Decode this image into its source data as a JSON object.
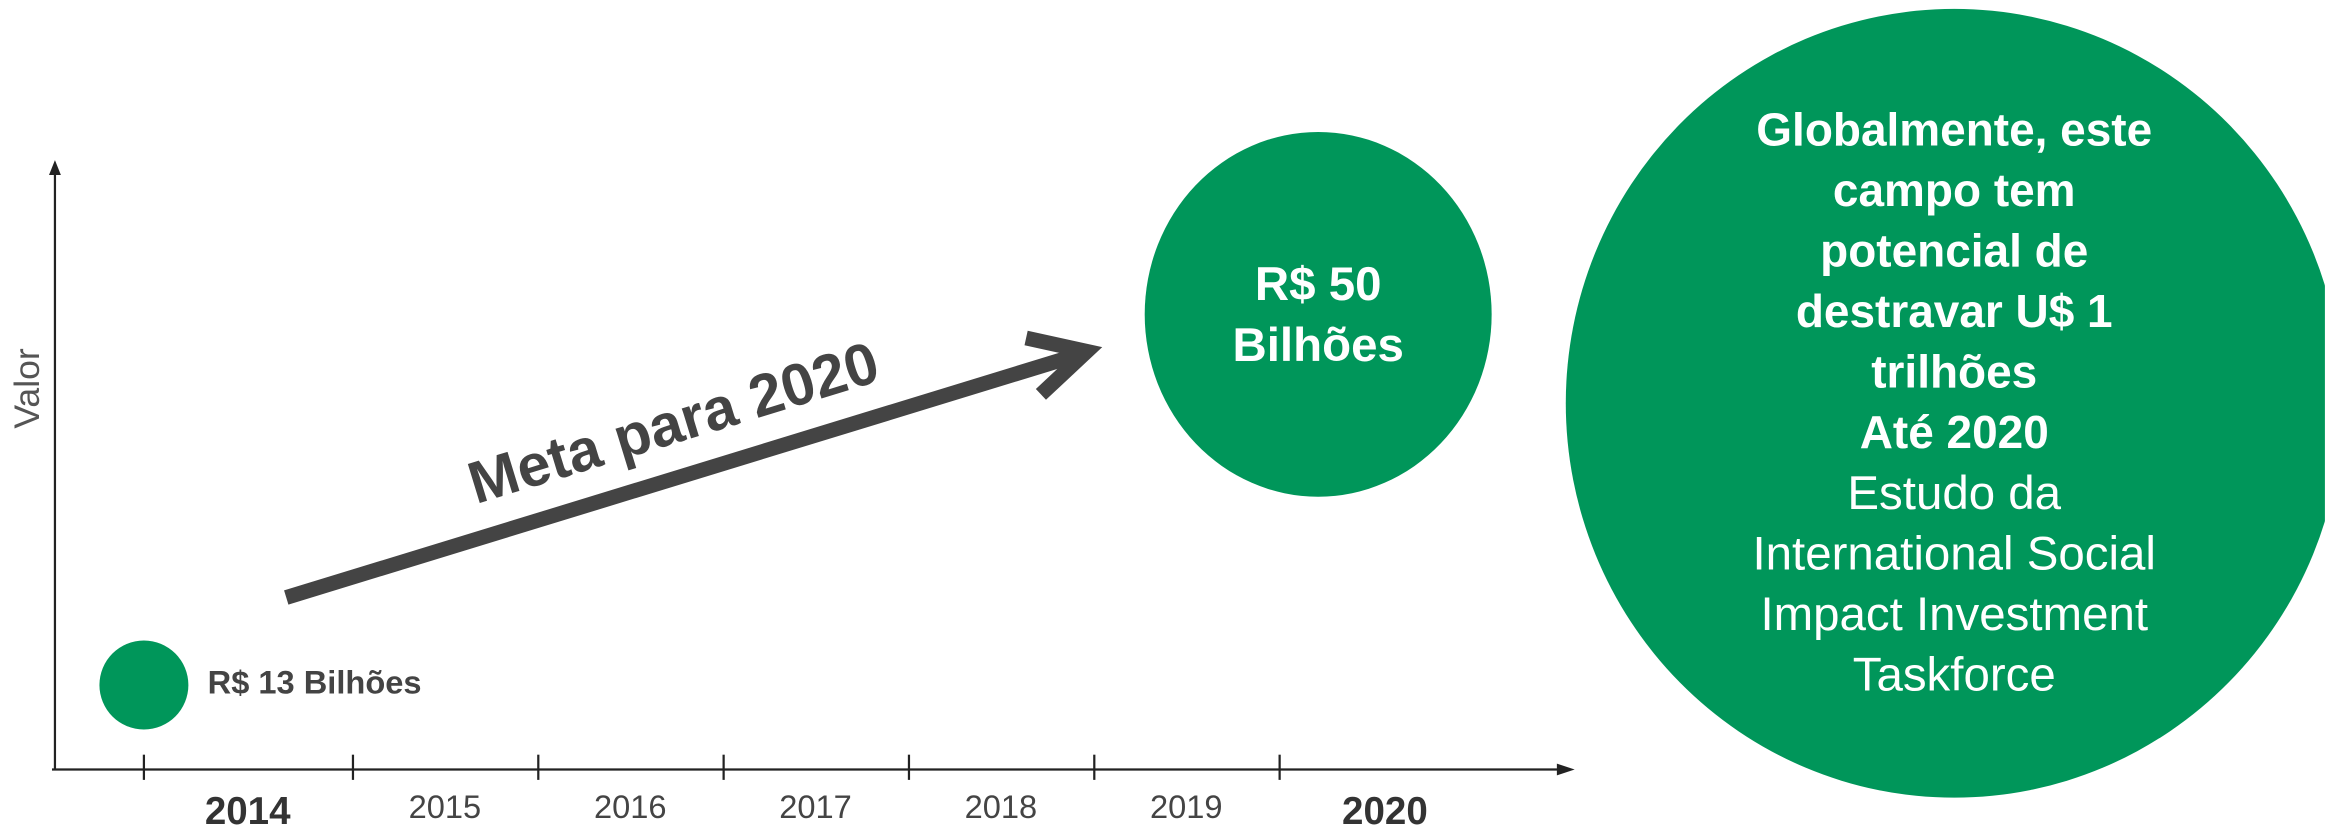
{
  "y_axis_label": "Valor",
  "years": [
    "2014",
    "2015",
    "2016",
    "2017",
    "2018",
    "2019",
    "2020"
  ],
  "start": {
    "label": "R$ 13 Bilhões"
  },
  "arrow": {
    "label": "Meta para 2020"
  },
  "target": {
    "lines": [
      "R$ 50",
      "Bilhões"
    ]
  },
  "global": {
    "bold_lines": [
      "Globalmente, este",
      "campo tem",
      "potencial de",
      "destravar U$ 1",
      "trilhões",
      "Até 2020"
    ],
    "lines": [
      "Estudo da",
      "International Social",
      "Impact Investment",
      "Taskforce"
    ]
  }
}
